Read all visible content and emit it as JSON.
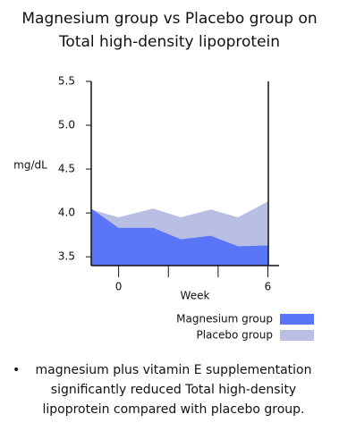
{
  "chart_data": {
    "type": "area",
    "title": "Magnesium group vs Placebo group on Total high-density lipoprotein",
    "x_label": "Week",
    "y_label": "mg/dL",
    "x": [
      -1.1,
      0,
      1.4,
      2.5,
      3.7,
      4.8,
      6
    ],
    "series": [
      {
        "name": "Placebo group",
        "color": "#b9bfe3",
        "values": [
          4.04,
          3.95,
          4.05,
          3.95,
          4.04,
          3.95,
          4.13
        ]
      },
      {
        "name": "Magnesium group",
        "color": "#5a76f6",
        "values": [
          4.05,
          3.83,
          3.83,
          3.7,
          3.74,
          3.62,
          3.63
        ]
      }
    ],
    "xlim": [
      -1.1,
      6.45
    ],
    "xticks": [
      0,
      {
        "value": 2,
        "label": null
      },
      {
        "value": 4,
        "label": null
      },
      6
    ],
    "ylim": [
      3.4,
      5.5
    ],
    "yticks": [
      3.5,
      4.0,
      4.5,
      5.0,
      5.5
    ],
    "legend": [
      "Magnesium group",
      "Placebo group"
    ],
    "notes": [
      "magnesium plus vitamin E supplementation significantly reduced Total high-density lipoprotein compared with placebo group."
    ]
  }
}
